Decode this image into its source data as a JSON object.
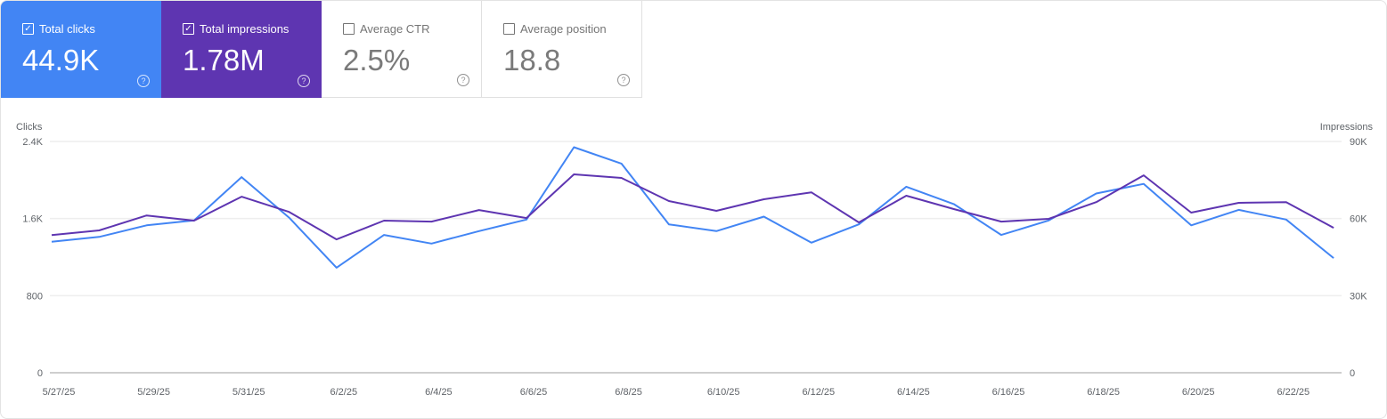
{
  "metrics": [
    {
      "label": "Total clicks",
      "value": "44.9K",
      "checked": true,
      "color": "#4285f4"
    },
    {
      "label": "Total impressions",
      "value": "1.78M",
      "checked": true,
      "color": "#5e35b1"
    },
    {
      "label": "Average CTR",
      "value": "2.5%",
      "checked": false
    },
    {
      "label": "Average position",
      "value": "18.8",
      "checked": false
    }
  ],
  "help_glyph": "?",
  "check_glyph": "✓",
  "chart_data": {
    "type": "line",
    "x": [
      "5/27/25",
      "5/28/25",
      "5/29/25",
      "5/30/25",
      "5/31/25",
      "6/1/25",
      "6/2/25",
      "6/3/25",
      "6/4/25",
      "6/5/25",
      "6/6/25",
      "6/7/25",
      "6/8/25",
      "6/9/25",
      "6/10/25",
      "6/11/25",
      "6/12/25",
      "6/13/25",
      "6/14/25",
      "6/15/25",
      "6/16/25",
      "6/17/25",
      "6/18/25",
      "6/19/25",
      "6/20/25",
      "6/21/25",
      "6/22/25",
      "6/23/25"
    ],
    "x_tick_labels": [
      "5/27/25",
      "5/29/25",
      "5/31/25",
      "6/2/25",
      "6/4/25",
      "6/6/25",
      "6/8/25",
      "6/10/25",
      "6/12/25",
      "6/14/25",
      "6/16/25",
      "6/18/25",
      "6/20/25",
      "6/22/25"
    ],
    "y_left": {
      "label": "Clicks",
      "ticks": [
        "0",
        "800",
        "1.6K",
        "2.4K"
      ],
      "tick_values": [
        0,
        800,
        1600,
        2400
      ],
      "range": [
        0,
        2400
      ]
    },
    "y_right": {
      "label": "Impressions",
      "ticks": [
        "0",
        "30K",
        "60K",
        "90K"
      ],
      "tick_values": [
        0,
        30000,
        60000,
        90000
      ],
      "range": [
        0,
        90000
      ]
    },
    "grid": true,
    "series": [
      {
        "axis": "left",
        "color": "#4285f4",
        "values": [
          1360,
          1410,
          1530,
          1580,
          2030,
          1610,
          1090,
          1430,
          1340,
          1470,
          1590,
          2340,
          2170,
          1540,
          1470,
          1620,
          1350,
          1540,
          1930,
          1750,
          1430,
          1580,
          1860,
          1960,
          1530,
          1690,
          1590,
          1190
        ]
      },
      {
        "axis": "right",
        "color": "#5e35b1",
        "values": [
          53600,
          55400,
          61200,
          59200,
          68500,
          62600,
          51900,
          59200,
          58800,
          63300,
          60200,
          77200,
          75800,
          66800,
          63000,
          67500,
          70200,
          58500,
          68900,
          63700,
          58800,
          59900,
          66400,
          76800,
          62300,
          66100,
          66400,
          56400
        ]
      }
    ]
  }
}
